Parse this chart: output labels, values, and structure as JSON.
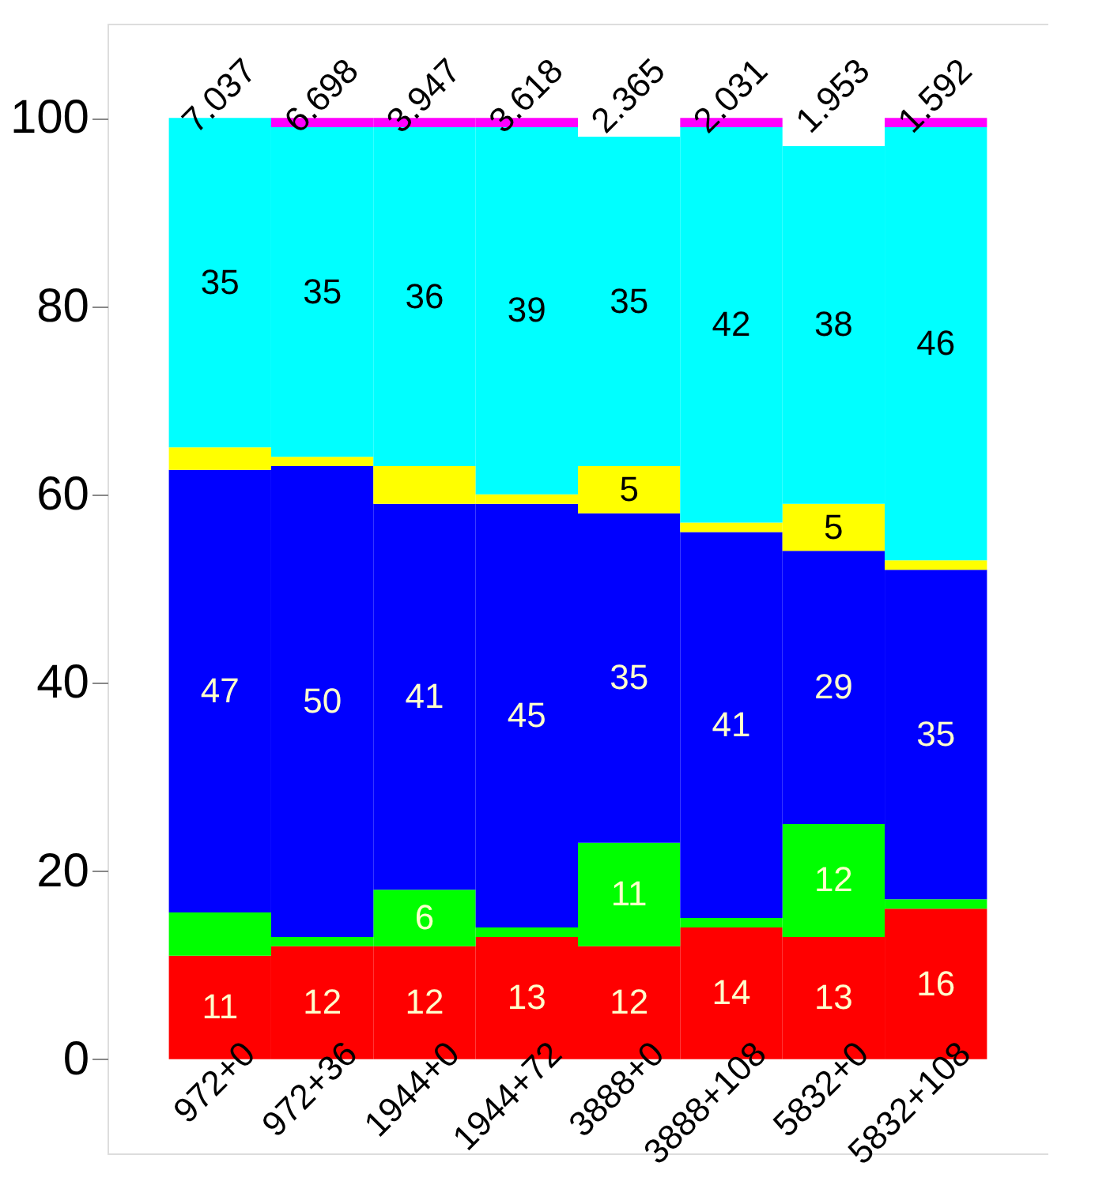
{
  "chart_data": {
    "type": "bar",
    "stacked": true,
    "categories": [
      "972+0",
      "972+36",
      "1944+0",
      "1944+72",
      "3888+0",
      "3888+108",
      "5832+0",
      "5832+108"
    ],
    "series": [
      {
        "color": "#ff0000",
        "values": [
          11,
          12,
          12,
          13,
          12,
          14,
          13,
          16
        ],
        "value_labels": [
          "11",
          "12",
          "12",
          "13",
          "12",
          "14",
          "13",
          "16"
        ]
      },
      {
        "color": "#00ff00",
        "values": [
          4.6,
          1,
          6,
          1,
          11,
          1,
          12,
          1
        ],
        "value_labels": [
          null,
          null,
          "6",
          null,
          "11",
          null,
          "12",
          null
        ]
      },
      {
        "color": "#0000ff",
        "values": [
          47,
          50,
          41,
          45,
          35,
          41,
          29,
          35
        ],
        "value_labels": [
          "47",
          "50",
          "41",
          "45",
          "35",
          "41",
          "29",
          "35"
        ]
      },
      {
        "color": "#ffff00",
        "values": [
          2.4,
          1,
          4,
          1,
          5,
          1,
          5,
          1
        ],
        "value_labels": [
          null,
          null,
          null,
          null,
          "5",
          null,
          "5",
          null
        ]
      },
      {
        "color": "#00ffff",
        "values": [
          35,
          35,
          36,
          39,
          35,
          42,
          38,
          46
        ],
        "value_labels": [
          "35",
          "35",
          "36",
          "39",
          "35",
          "42",
          "38",
          "46"
        ]
      },
      {
        "color": "#ff00ff",
        "values": [
          0,
          1,
          1,
          1,
          0,
          1,
          0,
          1
        ]
      }
    ],
    "annotations": [
      "7.037",
      "6.698",
      "3.947",
      "3.618",
      "2.365",
      "2.031",
      "1.953",
      "1.592"
    ],
    "ylim": [
      -10,
      110
    ],
    "yticks": [
      0,
      20,
      40,
      60,
      80,
      100
    ],
    "grid": false
  }
}
